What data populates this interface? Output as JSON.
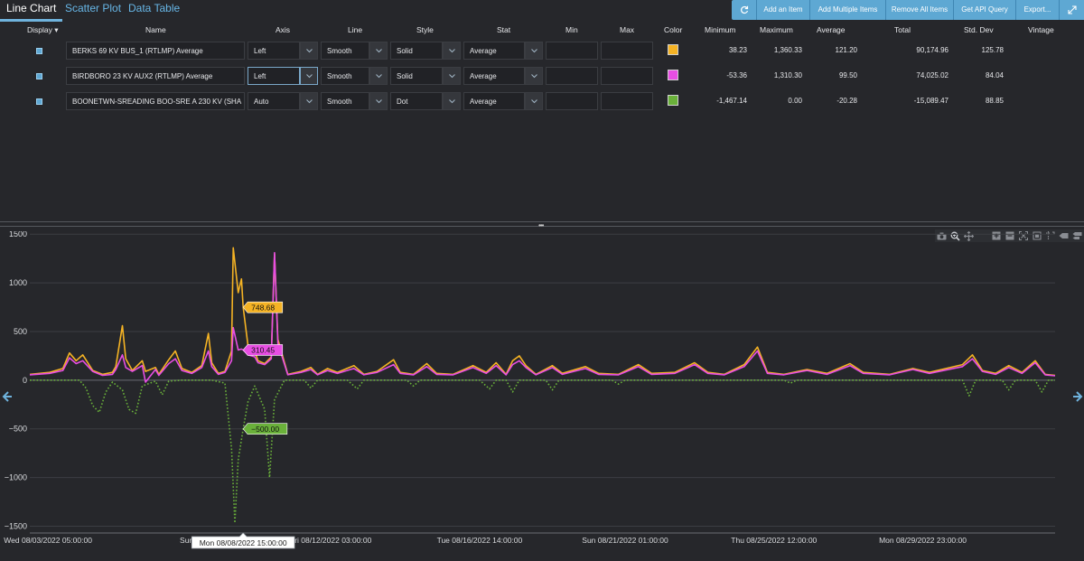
{
  "tabs": [
    {
      "label": "Line Chart",
      "active": true
    },
    {
      "label": "Scatter Plot",
      "active": false
    },
    {
      "label": "Data Table",
      "active": false
    }
  ],
  "toolbar": {
    "refresh_icon": "refresh-icon",
    "add_item": "Add an Item",
    "add_multiple": "Add Multiple Items",
    "remove_all": "Remove All Items",
    "api_query": "Get API Query",
    "export": "Export...",
    "expand_icon": "expand-icon"
  },
  "table": {
    "headers": {
      "display": "Display",
      "name": "Name",
      "axis": "Axis",
      "line": "Line",
      "style": "Style",
      "stat": "Stat",
      "min": "Min",
      "max": "Max",
      "color": "Color",
      "minimum": "Minimum",
      "maximum": "Maximum",
      "average": "Average",
      "total": "Total",
      "stddev": "Std. Dev",
      "vintage": "Vintage"
    },
    "rows": [
      {
        "name": "BERKS 69 KV BUS_1 (RTLMP) Average",
        "axis": "Left",
        "line": "Smooth",
        "style": "Solid",
        "stat": "Average",
        "min": "",
        "max": "",
        "color": "#f5b324",
        "minimum": "38.23",
        "maximum": "1,360.33",
        "average": "121.20",
        "total": "90,174.96",
        "stddev": "125.78",
        "vintage": ""
      },
      {
        "name": "BIRDBORO 23 KV AUX2 (RTLMP) Average",
        "axis": "Left",
        "line": "Smooth",
        "style": "Solid",
        "stat": "Average",
        "min": "",
        "max": "",
        "color": "#e84ee3",
        "minimum": "-53.36",
        "maximum": "1,310.30",
        "average": "99.50",
        "total": "74,025.02",
        "stddev": "84.04",
        "vintage": ""
      },
      {
        "name": "BOONETWN-SREADING BOO-SRE  A  230 KV (SHA",
        "axis": "Auto",
        "line": "Smooth",
        "style": "Dot",
        "stat": "Average",
        "min": "",
        "max": "",
        "color": "#6ab13a",
        "minimum": "-1,467.14",
        "maximum": "0.00",
        "average": "-20.28",
        "total": "-15,089.47",
        "stddev": "88.85",
        "vintage": ""
      }
    ]
  },
  "chart_data": {
    "type": "line",
    "y_ticks": [
      "1500",
      "1000",
      "500",
      "0",
      "−500",
      "−1000",
      "−1500"
    ],
    "ylim": [
      -1570,
      1530
    ],
    "x_ticks": [
      "Wed 08/03/2022 05:00:00",
      "Sun 08/0",
      "Fri 08/12/2022 03:00:00",
      "Tue 08/16/2022 14:00:00",
      "Sun 08/21/2022 01:00:00",
      "Thu 08/25/2022 12:00:00",
      "Mon 08/29/2022 23:00:00"
    ],
    "x_range_days": [
      0,
      31
    ],
    "hover": {
      "x_label": "Mon 08/08/2022 15:00:00",
      "x_day": 6.45,
      "labels": [
        {
          "series": 0,
          "text": "748.68",
          "value": 748.68
        },
        {
          "series": 1,
          "text": "310.45",
          "value": 310.45
        },
        {
          "series": 2,
          "text": "−500.00",
          "value": -500
        }
      ]
    },
    "series": [
      {
        "color": "#f5b324",
        "style": "solid",
        "points": [
          [
            0,
            60
          ],
          [
            0.6,
            80
          ],
          [
            1,
            120
          ],
          [
            1.2,
            280
          ],
          [
            1.4,
            200
          ],
          [
            1.6,
            260
          ],
          [
            1.9,
            100
          ],
          [
            2.2,
            60
          ],
          [
            2.5,
            80
          ],
          [
            2.6,
            140
          ],
          [
            2.8,
            560
          ],
          [
            2.9,
            220
          ],
          [
            3.1,
            100
          ],
          [
            3.4,
            200
          ],
          [
            3.5,
            90
          ],
          [
            3.8,
            130
          ],
          [
            3.9,
            60
          ],
          [
            4.2,
            210
          ],
          [
            4.4,
            300
          ],
          [
            4.6,
            120
          ],
          [
            4.9,
            80
          ],
          [
            5.2,
            150
          ],
          [
            5.4,
            480
          ],
          [
            5.5,
            180
          ],
          [
            5.7,
            70
          ],
          [
            5.9,
            90
          ],
          [
            6.1,
            300
          ],
          [
            6.15,
            1360
          ],
          [
            6.3,
            900
          ],
          [
            6.4,
            1040
          ],
          [
            6.45,
            748.68
          ],
          [
            6.6,
            350
          ],
          [
            6.8,
            300
          ],
          [
            6.9,
            200
          ],
          [
            7.1,
            170
          ],
          [
            7.3,
            240
          ],
          [
            7.4,
            1300
          ],
          [
            7.5,
            420
          ],
          [
            7.8,
            60
          ],
          [
            8.2,
            90
          ],
          [
            8.5,
            130
          ],
          [
            8.7,
            60
          ],
          [
            9,
            120
          ],
          [
            9.3,
            80
          ],
          [
            9.8,
            150
          ],
          [
            10.1,
            60
          ],
          [
            10.5,
            90
          ],
          [
            11,
            210
          ],
          [
            11.2,
            80
          ],
          [
            11.6,
            60
          ],
          [
            12,
            170
          ],
          [
            12.3,
            70
          ],
          [
            12.8,
            60
          ],
          [
            13.4,
            150
          ],
          [
            13.8,
            80
          ],
          [
            14.1,
            180
          ],
          [
            14.4,
            60
          ],
          [
            14.6,
            200
          ],
          [
            14.8,
            250
          ],
          [
            15,
            150
          ],
          [
            15.3,
            60
          ],
          [
            15.8,
            150
          ],
          [
            16.1,
            70
          ],
          [
            16.8,
            140
          ],
          [
            17.2,
            70
          ],
          [
            17.8,
            60
          ],
          [
            18.4,
            160
          ],
          [
            18.8,
            70
          ],
          [
            19.5,
            80
          ],
          [
            20.1,
            180
          ],
          [
            20.5,
            80
          ],
          [
            21,
            60
          ],
          [
            21.6,
            160
          ],
          [
            22,
            340
          ],
          [
            22.3,
            80
          ],
          [
            22.8,
            60
          ],
          [
            23.5,
            110
          ],
          [
            24.1,
            70
          ],
          [
            24.8,
            170
          ],
          [
            25.2,
            80
          ],
          [
            26,
            60
          ],
          [
            26.7,
            120
          ],
          [
            27.2,
            80
          ],
          [
            28.2,
            160
          ],
          [
            28.5,
            260
          ],
          [
            28.8,
            100
          ],
          [
            29.2,
            70
          ],
          [
            29.6,
            150
          ],
          [
            30,
            80
          ],
          [
            30.4,
            200
          ],
          [
            30.7,
            60
          ],
          [
            31,
            50
          ]
        ]
      },
      {
        "color": "#e84ee3",
        "style": "solid",
        "points": [
          [
            0,
            55
          ],
          [
            0.6,
            70
          ],
          [
            1,
            100
          ],
          [
            1.2,
            230
          ],
          [
            1.4,
            170
          ],
          [
            1.6,
            200
          ],
          [
            1.9,
            90
          ],
          [
            2.2,
            50
          ],
          [
            2.5,
            60
          ],
          [
            2.6,
            110
          ],
          [
            2.8,
            260
          ],
          [
            2.9,
            130
          ],
          [
            3.1,
            90
          ],
          [
            3.4,
            150
          ],
          [
            3.5,
            -20
          ],
          [
            3.8,
            110
          ],
          [
            3.9,
            50
          ],
          [
            4.2,
            170
          ],
          [
            4.4,
            220
          ],
          [
            4.6,
            100
          ],
          [
            4.9,
            70
          ],
          [
            5.2,
            130
          ],
          [
            5.4,
            300
          ],
          [
            5.5,
            140
          ],
          [
            5.7,
            60
          ],
          [
            5.9,
            80
          ],
          [
            6.1,
            200
          ],
          [
            6.15,
            540
          ],
          [
            6.3,
            310.45
          ],
          [
            6.4,
            320
          ],
          [
            6.45,
            310.45
          ],
          [
            6.6,
            260
          ],
          [
            6.8,
            240
          ],
          [
            6.9,
            180
          ],
          [
            7.1,
            160
          ],
          [
            7.3,
            220
          ],
          [
            7.4,
            1310
          ],
          [
            7.5,
            380
          ],
          [
            7.8,
            55
          ],
          [
            8.2,
            80
          ],
          [
            8.5,
            110
          ],
          [
            8.7,
            55
          ],
          [
            9,
            100
          ],
          [
            9.3,
            70
          ],
          [
            9.8,
            120
          ],
          [
            10.1,
            55
          ],
          [
            10.5,
            80
          ],
          [
            11,
            160
          ],
          [
            11.2,
            70
          ],
          [
            11.6,
            55
          ],
          [
            12,
            140
          ],
          [
            12.3,
            60
          ],
          [
            12.8,
            55
          ],
          [
            13.4,
            130
          ],
          [
            13.8,
            70
          ],
          [
            14.1,
            150
          ],
          [
            14.4,
            55
          ],
          [
            14.6,
            160
          ],
          [
            14.8,
            200
          ],
          [
            15,
            130
          ],
          [
            15.3,
            55
          ],
          [
            15.8,
            130
          ],
          [
            16.1,
            60
          ],
          [
            16.8,
            120
          ],
          [
            17.2,
            60
          ],
          [
            17.8,
            55
          ],
          [
            18.4,
            140
          ],
          [
            18.8,
            60
          ],
          [
            19.5,
            70
          ],
          [
            20.1,
            160
          ],
          [
            20.5,
            70
          ],
          [
            21,
            55
          ],
          [
            21.6,
            140
          ],
          [
            22,
            300
          ],
          [
            22.3,
            70
          ],
          [
            22.8,
            55
          ],
          [
            23.5,
            100
          ],
          [
            24.1,
            60
          ],
          [
            24.8,
            150
          ],
          [
            25.2,
            70
          ],
          [
            26,
            55
          ],
          [
            26.7,
            110
          ],
          [
            27.2,
            70
          ],
          [
            28.2,
            140
          ],
          [
            28.5,
            220
          ],
          [
            28.8,
            90
          ],
          [
            29.2,
            60
          ],
          [
            29.6,
            130
          ],
          [
            30,
            70
          ],
          [
            30.4,
            180
          ],
          [
            30.7,
            55
          ],
          [
            31,
            45
          ]
        ]
      },
      {
        "color": "#6ab13a",
        "style": "dot",
        "points": [
          [
            0,
            0
          ],
          [
            1.5,
            0
          ],
          [
            1.7,
            -80
          ],
          [
            1.9,
            -260
          ],
          [
            2.1,
            -330
          ],
          [
            2.3,
            -120
          ],
          [
            2.5,
            -20
          ],
          [
            2.8,
            -100
          ],
          [
            3,
            -300
          ],
          [
            3.2,
            -340
          ],
          [
            3.4,
            -60
          ],
          [
            3.8,
            -10
          ],
          [
            4,
            -150
          ],
          [
            4.2,
            -10
          ],
          [
            4.6,
            0
          ],
          [
            5.5,
            0
          ],
          [
            5.9,
            -30
          ],
          [
            6.1,
            -700
          ],
          [
            6.2,
            -1467
          ],
          [
            6.3,
            -820
          ],
          [
            6.45,
            -500
          ],
          [
            6.6,
            -220
          ],
          [
            6.8,
            -60
          ],
          [
            7.1,
            -300
          ],
          [
            7.25,
            -1000
          ],
          [
            7.4,
            -200
          ],
          [
            7.7,
            0
          ],
          [
            8.3,
            0
          ],
          [
            8.5,
            -80
          ],
          [
            8.7,
            0
          ],
          [
            9.6,
            0
          ],
          [
            9.9,
            -90
          ],
          [
            10.1,
            0
          ],
          [
            11.4,
            0
          ],
          [
            11.6,
            -60
          ],
          [
            11.8,
            0
          ],
          [
            13.6,
            0
          ],
          [
            13.9,
            -90
          ],
          [
            14.1,
            0
          ],
          [
            14.4,
            0
          ],
          [
            14.6,
            -120
          ],
          [
            14.8,
            0
          ],
          [
            15.6,
            0
          ],
          [
            15.8,
            -100
          ],
          [
            16,
            0
          ],
          [
            17.6,
            0
          ],
          [
            17.8,
            -40
          ],
          [
            18,
            0
          ],
          [
            22.8,
            0
          ],
          [
            23,
            -30
          ],
          [
            23.2,
            0
          ],
          [
            28.2,
            0
          ],
          [
            28.4,
            -160
          ],
          [
            28.6,
            0
          ],
          [
            29.4,
            0
          ],
          [
            29.6,
            -100
          ],
          [
            29.8,
            0
          ],
          [
            30.4,
            0
          ],
          [
            30.6,
            -120
          ],
          [
            30.8,
            0
          ],
          [
            31,
            0
          ]
        ]
      }
    ]
  }
}
